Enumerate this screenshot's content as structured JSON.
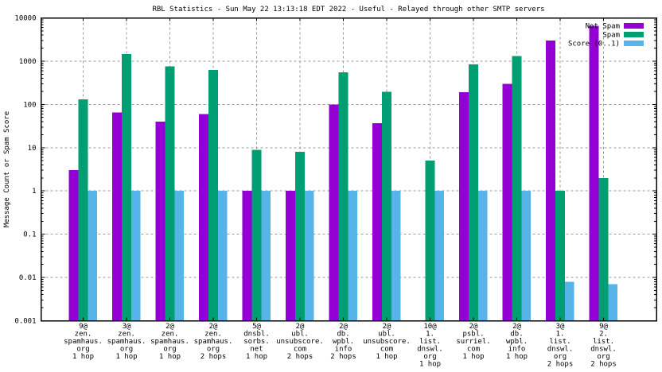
{
  "chart_data": {
    "type": "bar",
    "title": "RBL Statistics - Sun May 22 13:13:18 EDT 2022 - Useful - Relayed through other SMTP servers",
    "ylabel": "Message Count or Spam Score",
    "yscale": "log",
    "ylim": [
      0.001,
      10000
    ],
    "ytick_labels": [
      "10000",
      "1000",
      "100",
      "10",
      "1",
      "0.1",
      "0.01",
      "0.001"
    ],
    "grid": true,
    "legend_position": "top-right",
    "categories": [
      [
        "9@",
        "zen.",
        "spamhaus.",
        "org",
        "1 hop"
      ],
      [
        "3@",
        "zen.",
        "spamhaus.",
        "org",
        "1 hop"
      ],
      [
        "2@",
        "zen.",
        "spamhaus.",
        "org",
        "1 hop"
      ],
      [
        "2@",
        "zen.",
        "spamhaus.",
        "org",
        "2 hops"
      ],
      [
        "5@",
        "dnsbl.",
        "sorbs.",
        "net",
        "1 hop"
      ],
      [
        "2@",
        "ubl.",
        "unsubscore.",
        "com",
        "2 hops"
      ],
      [
        "2@",
        "db.",
        "wpbl.",
        "info",
        "2 hops"
      ],
      [
        "2@",
        "ubl.",
        "unsubscore.",
        "com",
        "1 hop"
      ],
      [
        "10@",
        "1.",
        "list.",
        "dnswl.",
        "org",
        "1 hop"
      ],
      [
        "2@",
        "psbl.",
        "surriel.",
        "com",
        "1 hop"
      ],
      [
        "2@",
        "db.",
        "wpbl.",
        "info",
        "1 hop"
      ],
      [
        "3@",
        "1.",
        "list.",
        "dnswl.",
        "org",
        "2 hops"
      ],
      [
        "9@",
        "2.",
        "list.",
        "dnswl.",
        "org",
        "2 hops"
      ]
    ],
    "series": [
      {
        "name": "Not Spam",
        "color": "#9400D3",
        "values": [
          3,
          65,
          40,
          60,
          1,
          1,
          100,
          37,
          null,
          190,
          300,
          3000,
          6500
        ]
      },
      {
        "name": "Spam",
        "color": "#009E73",
        "values": [
          130,
          1450,
          760,
          620,
          9,
          8,
          550,
          195,
          5,
          840,
          1300,
          1,
          2
        ]
      },
      {
        "name": "Score (0..1)",
        "color": "#56B4E9",
        "values": [
          1,
          1,
          1,
          1,
          1,
          1,
          1,
          1,
          1,
          1,
          1,
          0.008,
          0.007
        ]
      }
    ],
    "colors": {
      "background": "#ffffff",
      "border": "#000000",
      "grid": "#9a9a9a"
    }
  }
}
